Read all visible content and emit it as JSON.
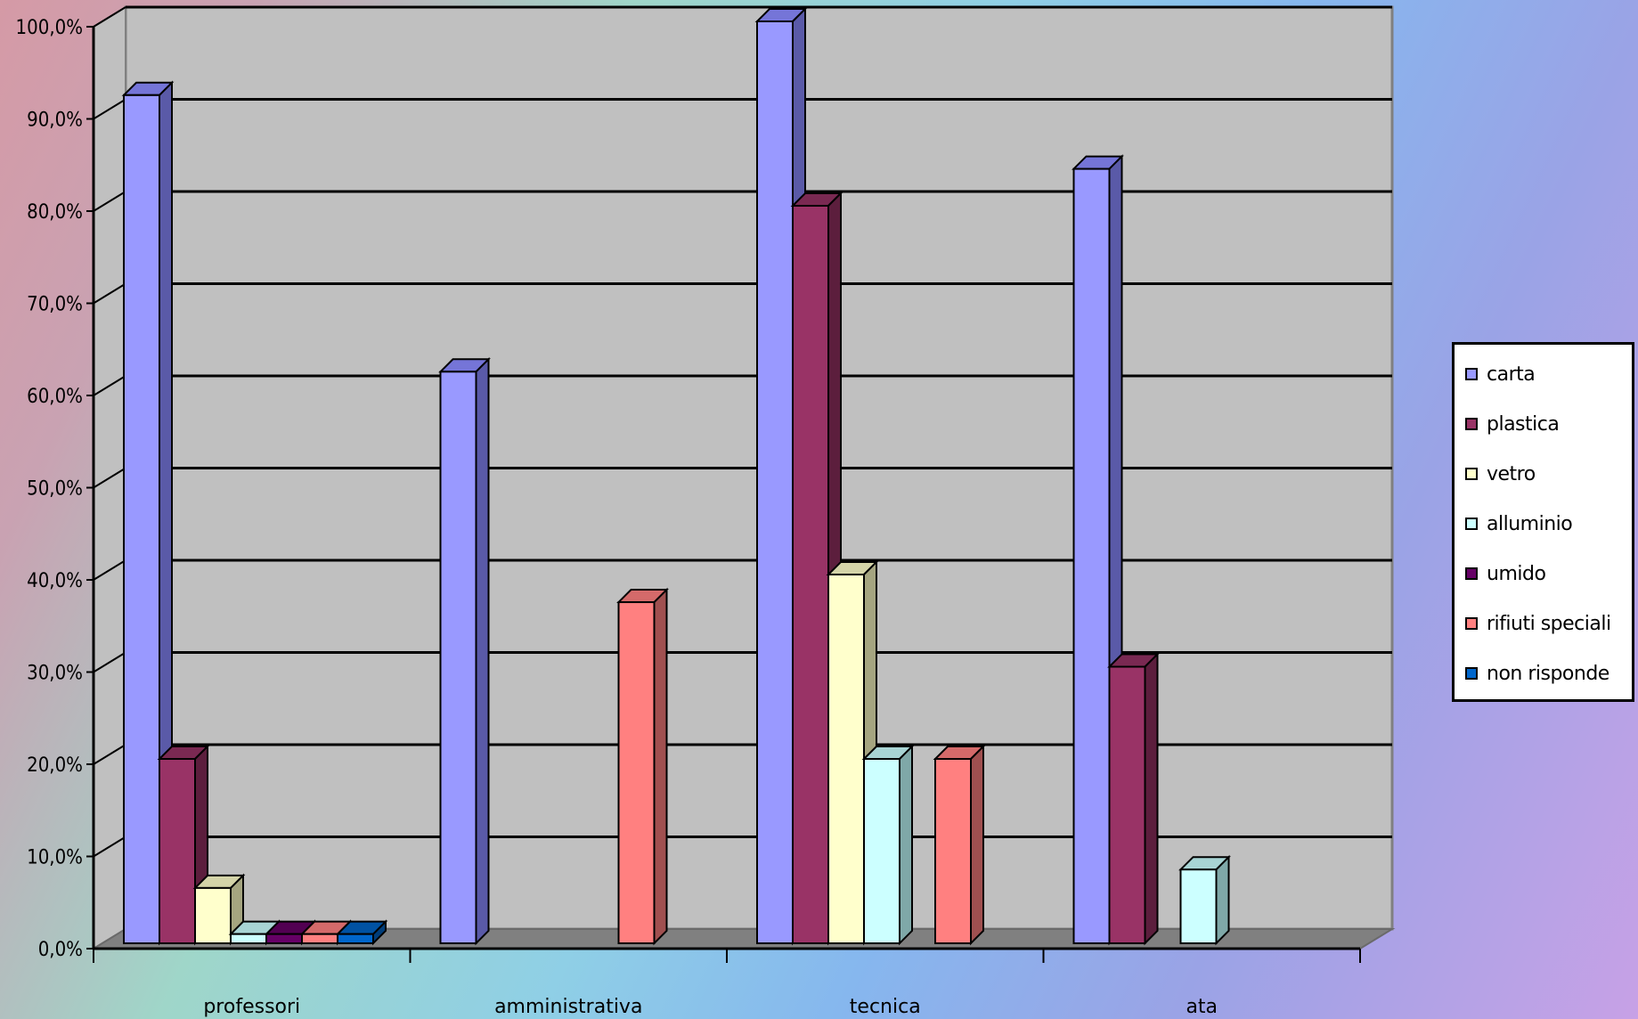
{
  "chart_data": {
    "type": "bar",
    "categories": [
      "professori",
      "amministrativa",
      "tecnica",
      "ata"
    ],
    "series": [
      {
        "name": "carta",
        "values": [
          92,
          62,
          100,
          84
        ],
        "color": "#9999ff",
        "side": "#5a5aa8",
        "top": "#7575d8"
      },
      {
        "name": "plastica",
        "values": [
          20,
          0,
          80,
          30
        ],
        "color": "#993366",
        "side": "#5c1e3d",
        "top": "#7a2952"
      },
      {
        "name": "vetro",
        "values": [
          6,
          0,
          40,
          0
        ],
        "color": "#ffffcc",
        "side": "#a5a580",
        "top": "#d4d4a8"
      },
      {
        "name": "alluminio",
        "values": [
          1,
          0,
          20,
          8
        ],
        "color": "#ccffff",
        "side": "#7fa8a8",
        "top": "#a8d4d4"
      },
      {
        "name": "umido",
        "values": [
          1,
          0,
          0,
          0
        ],
        "color": "#660066",
        "side": "#3d003d",
        "top": "#520052"
      },
      {
        "name": "rifiuti speciali",
        "values": [
          1,
          37,
          20,
          0
        ],
        "color": "#ff8080",
        "side": "#a05050",
        "top": "#d46a6a"
      },
      {
        "name": "non risponde",
        "values": [
          1,
          0,
          0,
          0
        ],
        "color": "#0066cc",
        "side": "#003d7a",
        "top": "#0052a3"
      }
    ],
    "ylim": [
      0,
      100
    ],
    "yticks": [
      0,
      10,
      20,
      30,
      40,
      50,
      60,
      70,
      80,
      90,
      100
    ],
    "ytick_labels": [
      "0,0%",
      "10,0%",
      "20,0%",
      "30,0%",
      "40,0%",
      "50,0%",
      "60,0%",
      "70,0%",
      "80,0%",
      "90,0%",
      "100,0%"
    ],
    "grid": true,
    "legend_position": "right",
    "wall_color": "#c0c0c0",
    "floor_color": "#808080"
  }
}
